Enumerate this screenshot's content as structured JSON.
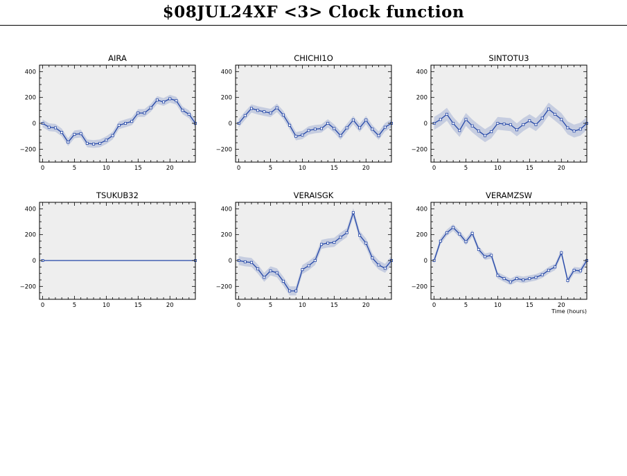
{
  "page": {
    "title": "$08JUL24XF <3>  Clock function"
  },
  "colors": {
    "panel_bg": "#eeeeee",
    "band": "#c6cde0",
    "line": "#2346a7",
    "axis": "#000000"
  },
  "chart_data": [
    {
      "type": "line",
      "title": "AIRA",
      "xlabel": "",
      "ylim": [
        -300,
        450
      ],
      "xlim": [
        -0.5,
        24
      ],
      "xticks": [
        0,
        5,
        10,
        15,
        20
      ],
      "yticks": [
        -200,
        0,
        200,
        400
      ],
      "x": [
        0,
        1,
        2,
        3,
        4,
        5,
        6,
        7,
        8,
        9,
        10,
        11,
        12,
        13,
        14,
        15,
        16,
        17,
        18,
        19,
        20,
        21,
        22,
        23,
        24
      ],
      "y": [
        0,
        -30,
        -35,
        -70,
        -145,
        -85,
        -80,
        -155,
        -160,
        -155,
        -130,
        -95,
        -15,
        0,
        15,
        80,
        80,
        120,
        180,
        165,
        190,
        175,
        100,
        70,
        0
      ],
      "band": [
        30,
        30,
        30,
        30,
        30,
        30,
        30,
        30,
        30,
        30,
        30,
        30,
        30,
        30,
        30,
        30,
        30,
        30,
        30,
        30,
        30,
        30,
        30,
        30,
        30
      ],
      "show_markers": true,
      "show_band": true
    },
    {
      "type": "line",
      "title": "CHICHI1O",
      "xlabel": "",
      "ylim": [
        -300,
        450
      ],
      "xlim": [
        -0.5,
        24
      ],
      "xticks": [
        0,
        5,
        10,
        15,
        20
      ],
      "yticks": [
        -200,
        0,
        200,
        400
      ],
      "x": [
        0,
        1,
        2,
        3,
        4,
        5,
        6,
        7,
        8,
        9,
        10,
        11,
        12,
        13,
        14,
        15,
        16,
        17,
        18,
        19,
        20,
        21,
        22,
        23,
        24
      ],
      "y": [
        0,
        60,
        115,
        100,
        90,
        80,
        120,
        65,
        -15,
        -100,
        -90,
        -55,
        -45,
        -40,
        0,
        -40,
        -95,
        -35,
        25,
        -35,
        25,
        -45,
        -95,
        -30,
        0
      ],
      "band": [
        32,
        32,
        32,
        32,
        32,
        32,
        32,
        32,
        32,
        32,
        32,
        32,
        32,
        32,
        32,
        32,
        32,
        32,
        32,
        32,
        32,
        32,
        32,
        32,
        32
      ],
      "show_markers": true,
      "show_band": true
    },
    {
      "type": "line",
      "title": "SINTOTU3",
      "xlabel": "",
      "ylim": [
        -300,
        450
      ],
      "xlim": [
        -0.5,
        24
      ],
      "xticks": [
        0,
        5,
        10,
        15,
        20
      ],
      "yticks": [
        -200,
        0,
        200,
        400
      ],
      "x": [
        0,
        1,
        2,
        3,
        4,
        5,
        6,
        7,
        8,
        9,
        10,
        11,
        12,
        13,
        14,
        15,
        16,
        17,
        18,
        19,
        20,
        21,
        22,
        23,
        24
      ],
      "y": [
        0,
        30,
        70,
        0,
        -55,
        30,
        -20,
        -60,
        -95,
        -65,
        0,
        -5,
        -10,
        -50,
        -10,
        20,
        -10,
        40,
        110,
        70,
        30,
        -35,
        -60,
        -45,
        0
      ],
      "band": [
        50,
        50,
        50,
        50,
        50,
        50,
        50,
        50,
        50,
        50,
        50,
        50,
        50,
        50,
        50,
        50,
        50,
        50,
        50,
        50,
        50,
        50,
        50,
        50,
        50
      ],
      "show_markers": true,
      "show_band": true
    },
    {
      "type": "line",
      "title": "TSUKUB32",
      "xlabel": "",
      "ylim": [
        -300,
        450
      ],
      "xlim": [
        -0.5,
        24
      ],
      "xticks": [
        0,
        5,
        10,
        15,
        20
      ],
      "yticks": [
        -200,
        0,
        200,
        400
      ],
      "x": [
        0,
        24
      ],
      "y": [
        0,
        0
      ],
      "band": [
        0,
        0
      ],
      "show_markers": true,
      "show_band": false
    },
    {
      "type": "line",
      "title": "VERAISGK",
      "xlabel": "",
      "ylim": [
        -300,
        450
      ],
      "xlim": [
        -0.5,
        24
      ],
      "xticks": [
        0,
        5,
        10,
        15,
        20
      ],
      "yticks": [
        -200,
        0,
        200,
        400
      ],
      "x": [
        0,
        1,
        2,
        3,
        4,
        5,
        6,
        7,
        8,
        9,
        10,
        11,
        12,
        13,
        14,
        15,
        16,
        17,
        18,
        19,
        20,
        21,
        22,
        23,
        24
      ],
      "y": [
        0,
        -10,
        -15,
        -65,
        -130,
        -80,
        -95,
        -160,
        -235,
        -235,
        -70,
        -40,
        0,
        125,
        135,
        140,
        180,
        215,
        370,
        195,
        135,
        20,
        -35,
        -60,
        0
      ],
      "band": [
        35,
        35,
        35,
        35,
        35,
        35,
        35,
        35,
        35,
        35,
        35,
        35,
        35,
        35,
        35,
        35,
        35,
        35,
        35,
        35,
        35,
        35,
        35,
        35,
        35
      ],
      "show_markers": true,
      "show_band": true
    },
    {
      "type": "line",
      "title": "VERAMZSW",
      "xlabel": "Time (hours)",
      "ylim": [
        -300,
        450
      ],
      "xlim": [
        -0.5,
        24
      ],
      "xticks": [
        0,
        5,
        10,
        15,
        20
      ],
      "yticks": [
        -200,
        0,
        200,
        400
      ],
      "x": [
        0,
        1,
        2,
        3,
        4,
        5,
        6,
        7,
        8,
        9,
        10,
        11,
        12,
        13,
        14,
        15,
        16,
        17,
        18,
        19,
        20,
        21,
        22,
        23,
        24
      ],
      "y": [
        0,
        150,
        215,
        255,
        205,
        145,
        210,
        85,
        30,
        40,
        -115,
        -140,
        -165,
        -140,
        -150,
        -140,
        -130,
        -110,
        -75,
        -50,
        60,
        -155,
        -75,
        -80,
        0
      ],
      "band": [
        25,
        25,
        25,
        25,
        25,
        25,
        25,
        25,
        25,
        25,
        25,
        25,
        25,
        25,
        25,
        25,
        25,
        25,
        25,
        25,
        25,
        25,
        25,
        25,
        25
      ],
      "show_markers": true,
      "show_band": true
    }
  ]
}
